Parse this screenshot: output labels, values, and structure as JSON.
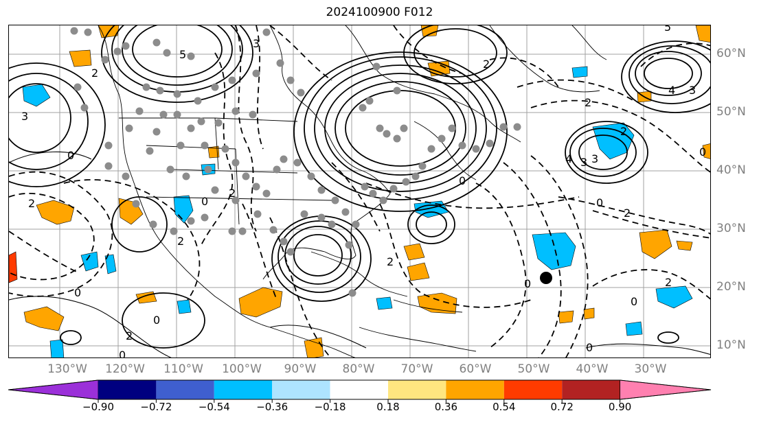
{
  "title": "2024100900 F012",
  "longitude_labels": [
    "130°W",
    "120°W",
    "110°W",
    "100°W",
    "90°W",
    "80°W",
    "70°W",
    "60°W",
    "50°W",
    "40°W",
    "30°W"
  ],
  "latitude_labels": [
    "60°N",
    "50°N",
    "40°N",
    "30°N",
    "20°N",
    "10°N"
  ],
  "colorbar": {
    "ticks": [
      "−0.90",
      "−0.72",
      "−0.54",
      "−0.36",
      "−0.18",
      "0.18",
      "0.36",
      "0.54",
      "0.72",
      "0.90"
    ],
    "colors": [
      "#9b30d9",
      "#000080",
      "#3f5fcf",
      "#00bfff",
      "#aee4ff",
      "#ffffff",
      "#ffe680",
      "#ffa500",
      "#ff3b00",
      "#b22222",
      "#ff80b0"
    ]
  },
  "contour_labels": [
    "5",
    "5",
    "3",
    "3",
    "2",
    "2",
    "2",
    "3",
    "4",
    "3",
    "2",
    "2",
    "0",
    "0",
    "0",
    "2",
    "2",
    "4",
    "3",
    "0",
    "0",
    "0",
    "0",
    "0",
    "0",
    "0",
    "2",
    "0",
    "2",
    "2",
    "2"
  ],
  "storm_marker": "black dot near 48°W 21°N"
}
